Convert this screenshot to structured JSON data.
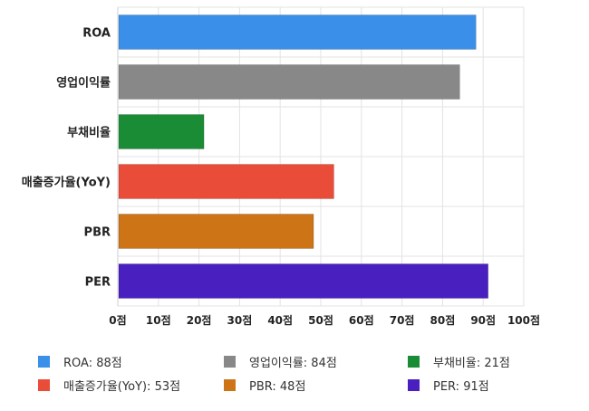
{
  "chart_data": {
    "type": "bar",
    "orientation": "horizontal",
    "categories": [
      "ROA",
      "영업이익률",
      "부채비율",
      "매출증가율(YoY)",
      "PBR",
      "PER"
    ],
    "values": [
      88,
      84,
      21,
      53,
      48,
      91
    ],
    "colors": [
      "#3a8fe8",
      "#888888",
      "#1b8c36",
      "#ea4c3a",
      "#cc7416",
      "#4a1fc0"
    ],
    "xlim": [
      0,
      100
    ],
    "xticks": [
      0,
      10,
      20,
      30,
      40,
      50,
      60,
      70,
      80,
      90,
      100
    ],
    "tick_suffix": "점",
    "grid": true,
    "legend_position": "bottom",
    "legend": [
      {
        "label": "ROA: 88점",
        "color": "#3a8fe8"
      },
      {
        "label": "영업이익률: 84점",
        "color": "#888888"
      },
      {
        "label": "부채비율: 21점",
        "color": "#1b8c36"
      },
      {
        "label": "매출증가율(YoY): 53점",
        "color": "#ea4c3a"
      },
      {
        "label": "PBR: 48점",
        "color": "#cc7416"
      },
      {
        "label": "PER: 91점",
        "color": "#4a1fc0"
      }
    ]
  }
}
